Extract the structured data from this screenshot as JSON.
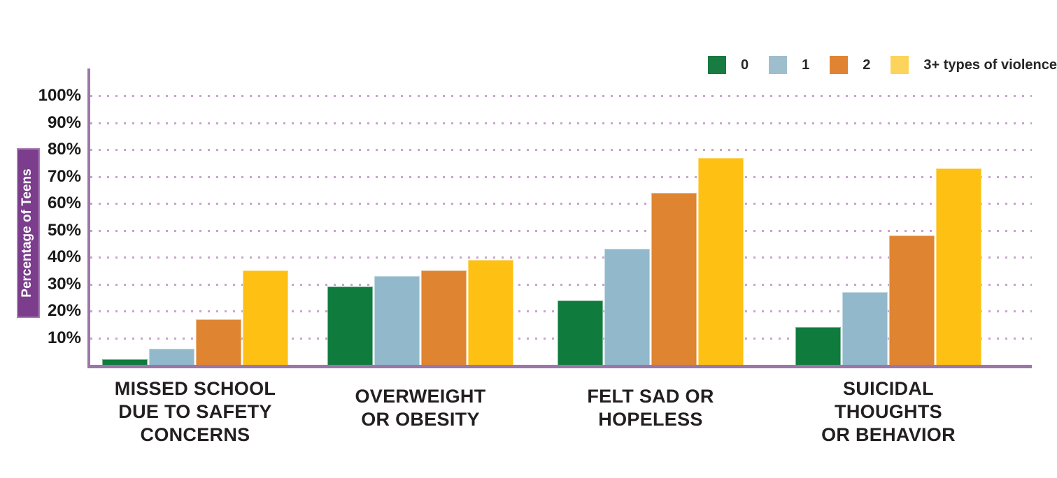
{
  "chart_data": {
    "type": "bar",
    "title": "",
    "ylabel": "Percentage of Teens",
    "xlabel": "",
    "y_ticks": [
      "100%",
      "90%",
      "80%",
      "70%",
      "60%",
      "50%",
      "40%",
      "30%",
      "20%",
      "10%"
    ],
    "ylim": [
      0,
      110
    ],
    "grid": "dotted-horizontal",
    "legend_position": "top-right",
    "legend_title": "",
    "categories": [
      [
        "MISSED SCHOOL",
        "DUE TO SAFETY",
        "CONCERNS"
      ],
      [
        "OVERWEIGHT",
        "OR OBESITY"
      ],
      [
        "FELT SAD OR",
        "HOPELESS"
      ],
      [
        "SUICIDAL",
        "THOUGHTS",
        "OR BEHAVIOR"
      ]
    ],
    "series": [
      {
        "name": "0",
        "color": "#0F7B3D",
        "legend_color": "#187B41",
        "values": [
          2,
          29,
          24,
          14
        ]
      },
      {
        "name": "1",
        "color": "#92B8CB",
        "legend_color": "#9EBECD",
        "values": [
          6,
          33,
          43,
          27
        ]
      },
      {
        "name": "2",
        "color": "#DF8430",
        "legend_color": "#E08434",
        "values": [
          17,
          35,
          64,
          48
        ]
      },
      {
        "name": "3+ types of violence",
        "color": "#FDC013",
        "legend_color": "#FDD45B",
        "values": [
          35,
          39,
          77,
          73
        ]
      }
    ],
    "colors": {
      "axis": "#9B77A8",
      "grid_dots": "#C9A3CF",
      "ylabel_box_fill": "#7B3D8C",
      "ylabel_box_border": "#A87CB5",
      "ylabel_text": "#FFFFFF",
      "tick_text": "#1A1A1A",
      "category_text": "#231F20",
      "legend_text": "#262626"
    }
  }
}
